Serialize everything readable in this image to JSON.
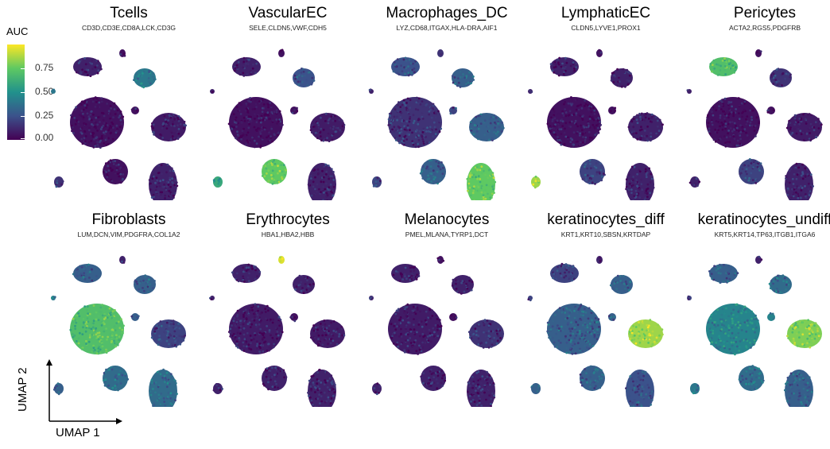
{
  "legend": {
    "title": "AUC",
    "ticks": [
      "0.75",
      "0.50",
      "0.25",
      "0.00"
    ]
  },
  "axes": {
    "x_label": "UMAP 1",
    "y_label": "UMAP 2"
  },
  "chart_data": {
    "type": "scatter",
    "color_scale": {
      "name": "viridis",
      "label": "AUC",
      "range": [
        0,
        1
      ]
    },
    "panels": [
      {
        "title": "Tcells",
        "genes": "CD3D,CD3E,CD8A,LCK,CD3G",
        "cluster_auc": [
          0.1,
          0.05,
          0.4,
          0.05,
          0.08,
          0.05,
          0.05,
          0.1,
          0.4,
          0.15
        ]
      },
      {
        "title": "VascularEC",
        "genes": "SELE,CLDN5,VWF,CDH5",
        "cluster_auc": [
          0.1,
          0.05,
          0.25,
          0.05,
          0.08,
          0.05,
          0.75,
          0.1,
          0.1,
          0.6
        ]
      },
      {
        "title": "Macrophages_DC",
        "genes": "LYZ,CD68,ITGAX,HLA-DRA,AIF1",
        "cluster_auc": [
          0.25,
          0.15,
          0.3,
          0.15,
          0.3,
          0.2,
          0.3,
          0.75,
          0.1,
          0.2
        ]
      },
      {
        "title": "LymphaticEC",
        "genes": "CLDN5,LYVE1,PROX1",
        "cluster_auc": [
          0.1,
          0.05,
          0.1,
          0.05,
          0.1,
          0.05,
          0.2,
          0.1,
          0.1,
          0.85
        ]
      },
      {
        "title": "Pericytes",
        "genes": "ACTA2,RGS5,PDGFRB",
        "cluster_auc": [
          0.7,
          0.05,
          0.15,
          0.05,
          0.08,
          0.05,
          0.2,
          0.1,
          0.1,
          0.1
        ]
      },
      {
        "title": "Fibroblasts",
        "genes": "LUM,DCN,VIM,PDGFRA,COL1A2",
        "cluster_auc": [
          0.3,
          0.1,
          0.3,
          0.7,
          0.2,
          0.3,
          0.35,
          0.35,
          0.4,
          0.3
        ]
      },
      {
        "title": "Erythrocytes",
        "genes": "HBA1,HBA2,HBB",
        "cluster_auc": [
          0.1,
          0.95,
          0.1,
          0.08,
          0.08,
          0.05,
          0.1,
          0.1,
          0.1,
          0.1
        ]
      },
      {
        "title": "Melanocytes",
        "genes": "PMEL,MLANA,TYRP1,DCT",
        "cluster_auc": [
          0.1,
          0.05,
          0.1,
          0.08,
          0.15,
          0.05,
          0.1,
          0.1,
          0.1,
          0.1
        ]
      },
      {
        "title": "keratinocytes_diff",
        "genes": "KRT1,KRT10,SBSN,KRTDAP",
        "cluster_auc": [
          0.2,
          0.1,
          0.3,
          0.3,
          0.85,
          0.3,
          0.3,
          0.25,
          0.2,
          0.3
        ]
      },
      {
        "title": "keratinocytes_undiff",
        "genes": "KRT5,KRT14,TP63,ITGB1,ITGA6",
        "cluster_auc": [
          0.3,
          0.1,
          0.35,
          0.45,
          0.8,
          0.45,
          0.35,
          0.3,
          0.2,
          0.4
        ]
      }
    ]
  }
}
